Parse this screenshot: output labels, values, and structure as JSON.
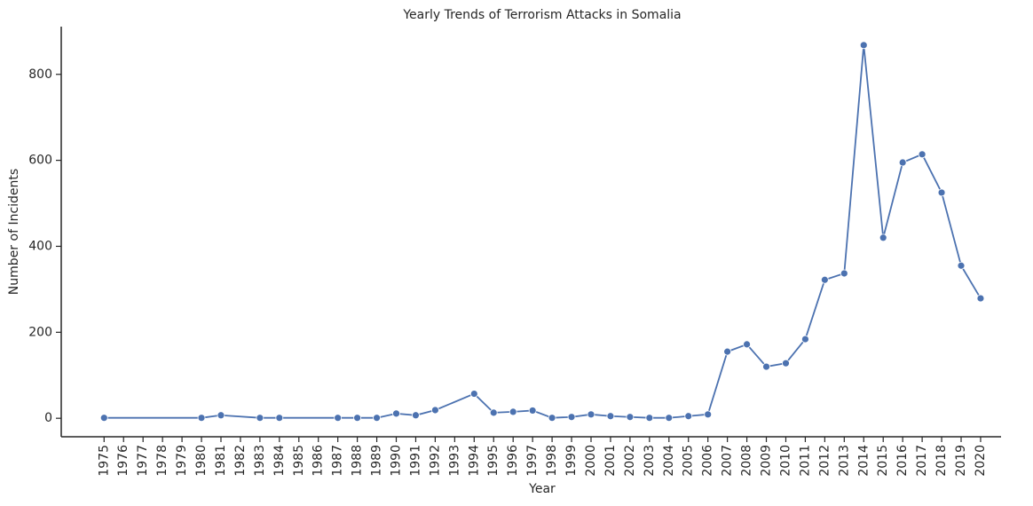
{
  "chart_data": {
    "type": "line",
    "title": "Yearly Trends of Terrorism Attacks in Somalia",
    "x_label": "Year",
    "y_label": "Number of Incidents",
    "x": [
      1975,
      1980,
      1981,
      1983,
      1984,
      1987,
      1988,
      1989,
      1990,
      1991,
      1992,
      1994,
      1995,
      1996,
      1997,
      1998,
      1999,
      2000,
      2001,
      2002,
      2003,
      2004,
      2005,
      2006,
      2007,
      2008,
      2009,
      2010,
      2011,
      2012,
      2013,
      2014,
      2015,
      2016,
      2017,
      2018,
      2019,
      2020
    ],
    "values": [
      1,
      1,
      7,
      1,
      1,
      1,
      1,
      1,
      11,
      7,
      19,
      57,
      13,
      15,
      18,
      1,
      3,
      9,
      5,
      3,
      1,
      1,
      5,
      9,
      155,
      172,
      120,
      128,
      184,
      322,
      337,
      868,
      420,
      595,
      614,
      525,
      355,
      279
    ],
    "color": "#4c72b0",
    "xlim": [
      1972.8,
      2021.05
    ],
    "xticks": [
      1975,
      1976,
      1977,
      1978,
      1979,
      1980,
      1981,
      1982,
      1983,
      1984,
      1985,
      1986,
      1987,
      1988,
      1989,
      1990,
      1991,
      1992,
      1993,
      1994,
      1995,
      1996,
      1997,
      1998,
      1999,
      2000,
      2001,
      2002,
      2003,
      2004,
      2005,
      2006,
      2007,
      2008,
      2009,
      2010,
      2011,
      2012,
      2013,
      2014,
      2015,
      2016,
      2017,
      2018,
      2019,
      2020
    ],
    "ylim": [
      -43,
      911
    ],
    "yticks": [
      0,
      200,
      400,
      600,
      800
    ],
    "grid": false
  }
}
